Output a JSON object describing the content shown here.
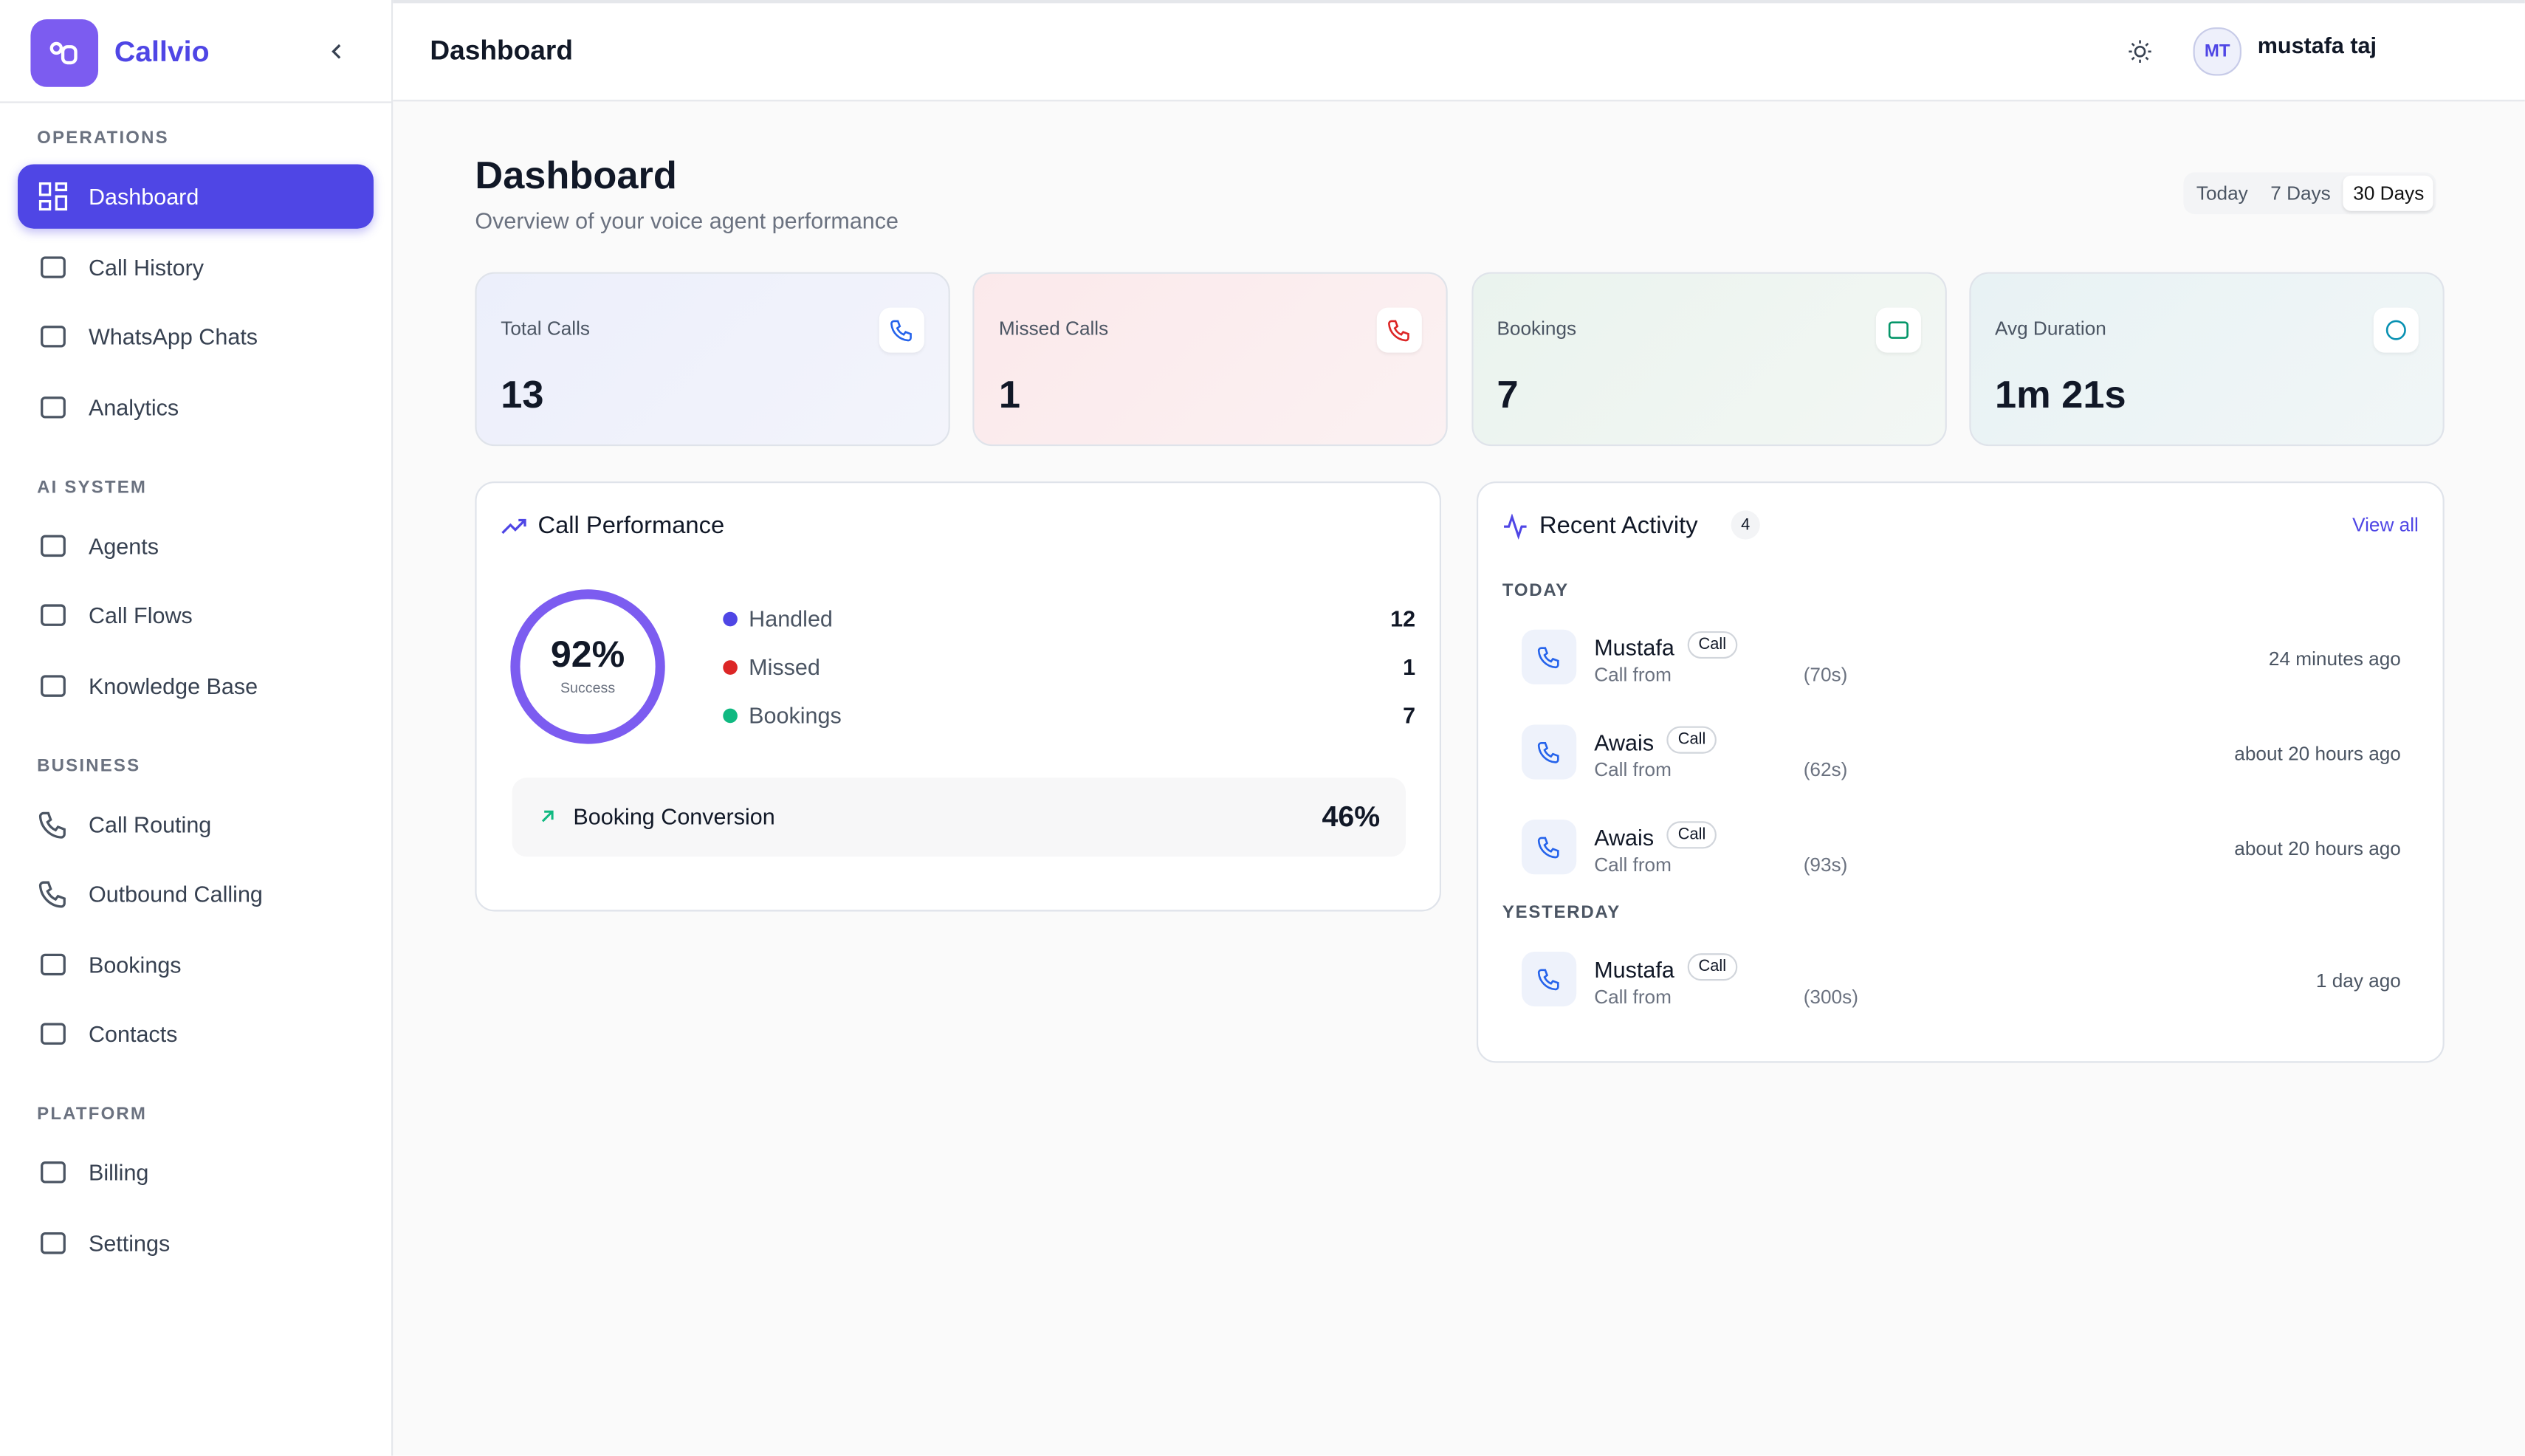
{
  "brand": "Callvio",
  "header": {
    "title": "Dashboard",
    "avatar": "MT",
    "user": "mustafa taj"
  },
  "sidebar": {
    "sections": [
      {
        "title": "OPERATIONS",
        "items": [
          "Dashboard",
          "Call History",
          "WhatsApp Chats",
          "Analytics"
        ]
      },
      {
        "title": "AI SYSTEM",
        "items": [
          "Agents",
          "Call Flows",
          "Knowledge Base"
        ]
      },
      {
        "title": "BUSINESS",
        "items": [
          "Call Routing",
          "Outbound Calling",
          "Bookings",
          "Contacts"
        ]
      },
      {
        "title": "PLATFORM",
        "items": [
          "Billing",
          "Settings"
        ]
      }
    ]
  },
  "page": {
    "title": "Dashboard",
    "subtitle": "Overview of your voice agent performance",
    "ranges": [
      "Today",
      "7 Days",
      "30 Days"
    ]
  },
  "stats": [
    {
      "label": "Total Calls",
      "value": "13"
    },
    {
      "label": "Missed Calls",
      "value": "1"
    },
    {
      "label": "Bookings",
      "value": "7"
    },
    {
      "label": "Avg Duration",
      "value": "1m 21s"
    }
  ],
  "performance": {
    "title": "Call Performance",
    "rate": "92%",
    "rate_label": "Success",
    "legend": [
      {
        "name": "Handled",
        "value": 12
      },
      {
        "name": "Missed",
        "value": 1
      },
      {
        "name": "Bookings",
        "value": 7
      }
    ],
    "conversion_label": "Booking Conversion",
    "conversion": "46%"
  },
  "activity": {
    "title": "Recent Activity",
    "count": 4,
    "link": "View all",
    "groups": [
      {
        "label": "TODAY",
        "items": [
          {
            "name": "Mustafa",
            "tag": "Call",
            "detail": "Call from",
            "duration": "(70s)",
            "time": "24 minutes ago"
          },
          {
            "name": "Awais",
            "tag": "Call",
            "detail": "Call from",
            "duration": "(62s)",
            "time": "about 20 hours ago"
          },
          {
            "name": "Awais",
            "tag": "Call",
            "detail": "Call from",
            "duration": "(93s)",
            "time": "about 20 hours ago"
          }
        ]
      },
      {
        "label": "YESTERDAY",
        "items": [
          {
            "name": "Mustafa",
            "tag": "Call",
            "detail": "Call from",
            "duration": "(300s)",
            "time": "1 day ago"
          }
        ]
      }
    ]
  }
}
